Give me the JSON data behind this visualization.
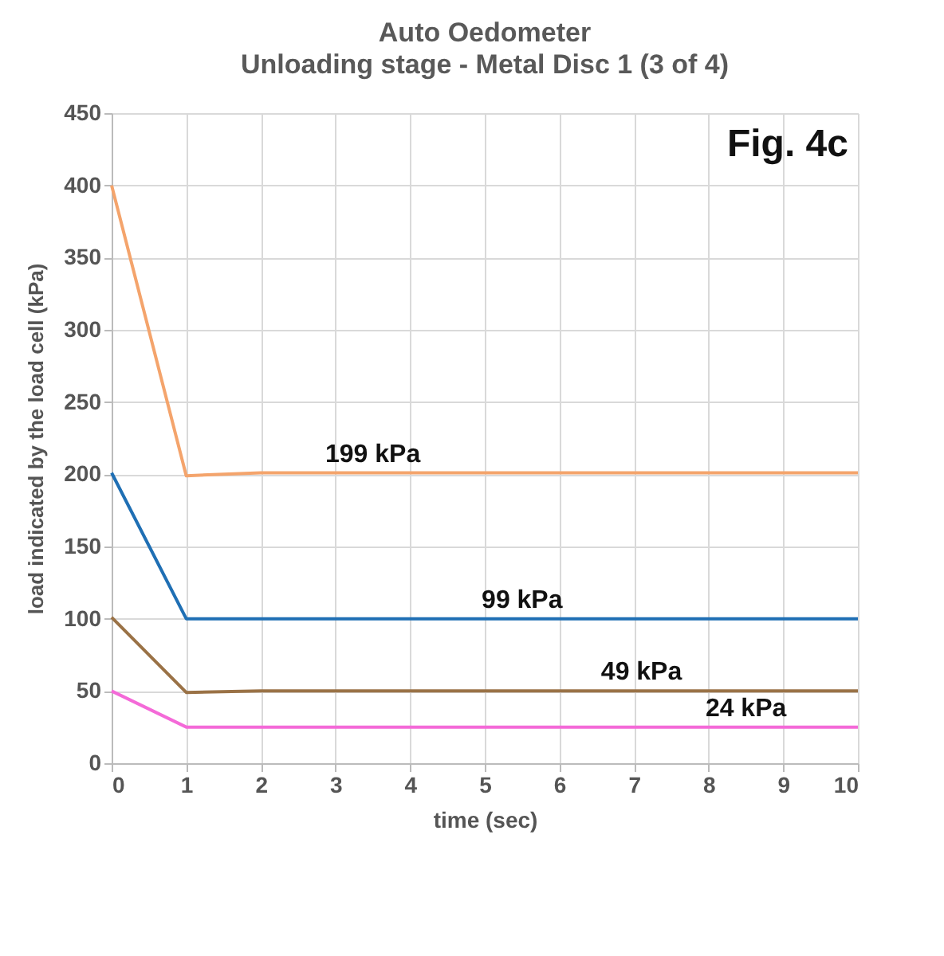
{
  "chart_data": {
    "type": "line",
    "title": "Auto Oedometer",
    "subtitle": "Unloading stage - Metal Disc 1 (3 of 4)",
    "xlabel": "time (sec)",
    "ylabel": "load indicated by the load cell (kPa)",
    "x": [
      0,
      1,
      2,
      3,
      4,
      5,
      6,
      7,
      8,
      9,
      10
    ],
    "series": [
      {
        "color": "#f4a46c",
        "values": [
          400,
          199,
          201,
          201,
          201,
          201,
          201,
          201,
          201,
          201,
          201
        ]
      },
      {
        "color": "#1f6fb4",
        "values": [
          201,
          100,
          100,
          100,
          100,
          100,
          100,
          100,
          100,
          100,
          100
        ]
      },
      {
        "color": "#9a7246",
        "values": [
          101,
          49,
          50,
          50,
          50,
          50,
          50,
          50,
          50,
          50,
          50
        ]
      },
      {
        "color": "#f46ad8",
        "values": [
          50,
          25,
          25,
          25,
          25,
          25,
          25,
          25,
          25,
          25,
          25
        ]
      }
    ],
    "annotations": [
      {
        "text": "199 kPa",
        "x": 3.5,
        "y": 201
      },
      {
        "text": "99 kPa",
        "x": 5.5,
        "y": 100
      },
      {
        "text": "49 kPa",
        "x": 7.1,
        "y": 50
      },
      {
        "text": "24 kPa",
        "x": 8.5,
        "y": 25
      },
      "Fig. 4c"
    ],
    "xlim": [
      0,
      10
    ],
    "xticks": [
      0,
      1,
      2,
      3,
      4,
      5,
      6,
      7,
      8,
      9,
      10
    ],
    "ylim": [
      0,
      450
    ],
    "yticks": [
      0,
      50,
      100,
      150,
      200,
      250,
      300,
      350,
      400,
      450
    ],
    "grid": true,
    "line_style": "solid"
  }
}
